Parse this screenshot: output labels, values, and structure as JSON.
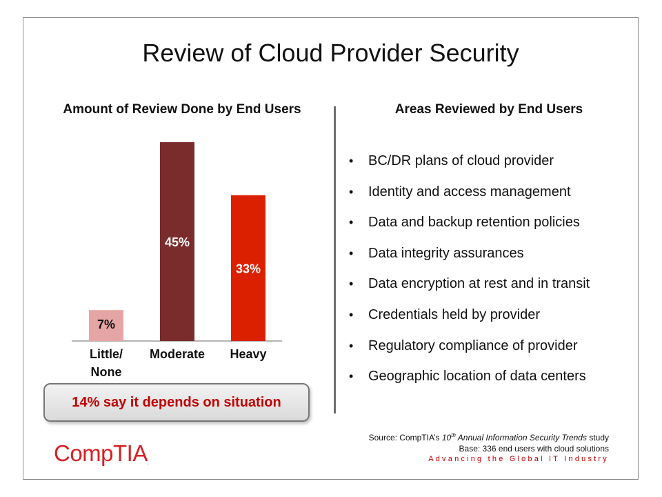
{
  "slide": {
    "title": "Review of Cloud Provider Security",
    "list_title": "Areas Reviewed by End Users",
    "areas": [
      "BC/DR plans of cloud provider",
      "Identity and access management",
      "Data and backup retention policies",
      "Data integrity assurances",
      "Data encryption at rest and in transit",
      "Credentials held by provider",
      "Regulatory compliance of provider",
      "Geographic location of data centers"
    ],
    "callout": "14% say it depends on situation",
    "logo": "CompTIA",
    "logo_mark": ".",
    "source_prefix": "Source: CompTIA’s ",
    "source_ordinal": "10",
    "source_ordinal_suffix": "th",
    "source_study": " Annual Information Security Trends",
    "source_suffix": " study",
    "source_base": "Base: 336 end users with cloud solutions",
    "tagline": "Advancing the Global IT Industry"
  },
  "chart_data": {
    "type": "bar",
    "title": "Amount of Review Done by End Users",
    "categories": [
      "Little/\nNone",
      "Moderate",
      "Heavy"
    ],
    "values": [
      7,
      45,
      33
    ],
    "data_labels": [
      "7%",
      "45%",
      "33%"
    ],
    "colors": [
      "#e6a5a5",
      "#7a2b2b",
      "#db2000"
    ],
    "label_colors": [
      "#111111",
      "#ffffff",
      "#ffffff"
    ],
    "ylim": [
      0,
      45
    ],
    "grid": false,
    "legend": "none"
  }
}
